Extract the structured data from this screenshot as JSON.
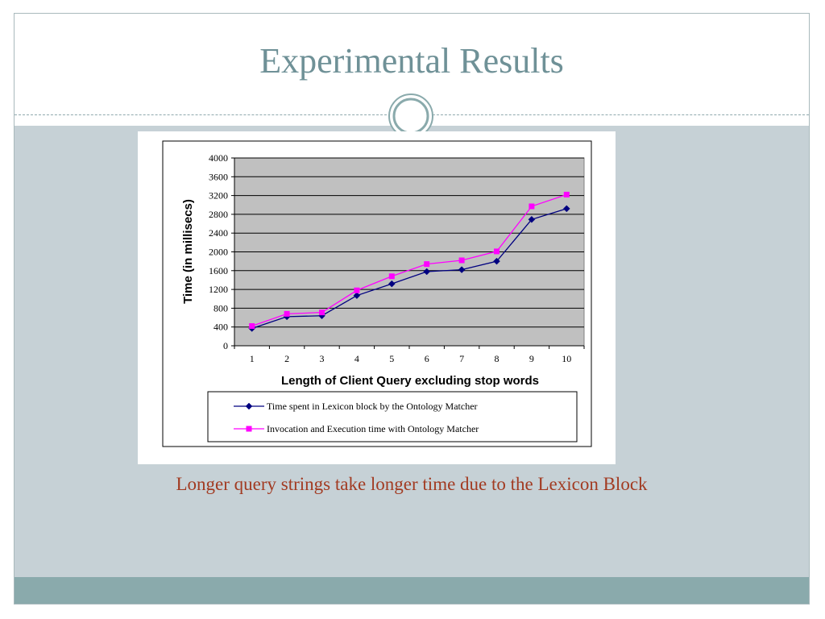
{
  "slide": {
    "title": "Experimental Results",
    "caption": "Longer query strings take longer time due to the Lexicon Block"
  },
  "colors": {
    "title": "#6f9197",
    "caption": "#a23b22",
    "body_background": "#c6d1d6",
    "footer": "#8aaaac",
    "plot_background": "#c0c0c0",
    "series1": "#000080",
    "series2": "#ff00ff"
  },
  "chart_data": {
    "type": "line",
    "title": "",
    "xlabel": "Length of Client Query excluding stop words",
    "ylabel": "Time (in millisecs)",
    "x": [
      1,
      2,
      3,
      4,
      5,
      6,
      7,
      8,
      9,
      10
    ],
    "x_tick_labels": [
      "1",
      "2",
      "3",
      "4",
      "5",
      "6",
      "7",
      "8",
      "9",
      "10"
    ],
    "ylim": [
      0,
      4000
    ],
    "y_ticks": [
      0,
      400,
      800,
      1200,
      1600,
      2000,
      2400,
      2800,
      3200,
      3600,
      4000
    ],
    "grid": "horizontal",
    "legend_position": "bottom",
    "series": [
      {
        "name": "Time spent in Lexicon block by the Ontology Matcher",
        "marker": "diamond",
        "color": "#000080",
        "values": [
          370,
          620,
          640,
          1070,
          1320,
          1580,
          1620,
          1800,
          2690,
          2920
        ]
      },
      {
        "name": "Invocation and Execution time with Ontology Matcher",
        "marker": "square",
        "color": "#ff00ff",
        "values": [
          420,
          680,
          710,
          1180,
          1480,
          1740,
          1820,
          2010,
          2970,
          3220
        ]
      }
    ]
  }
}
